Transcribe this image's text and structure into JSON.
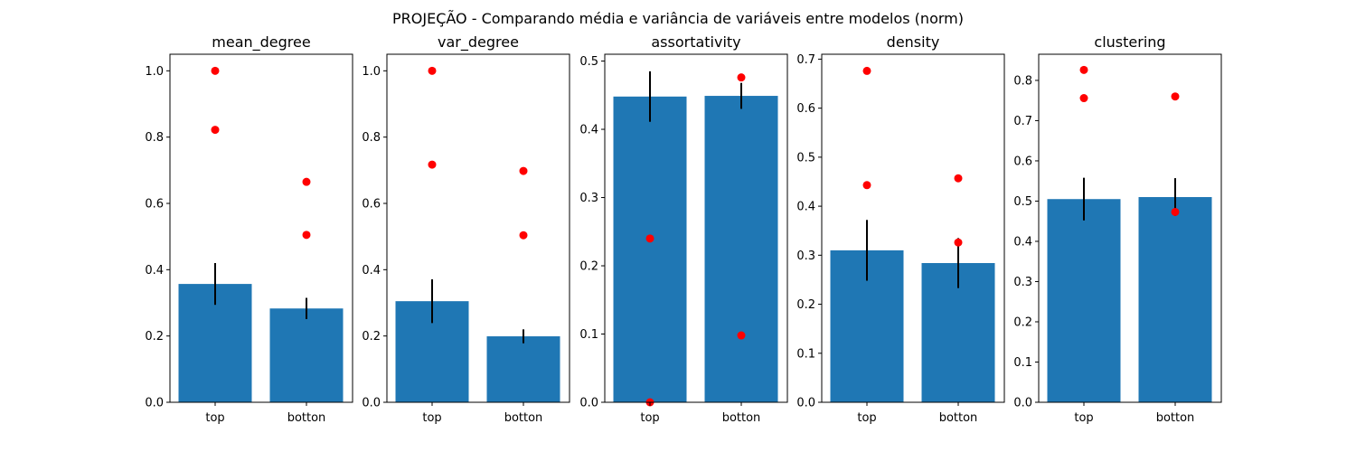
{
  "suptitle": "PROJEÇÃO - Comparando média e variância de variáveis entre modelos (norm)",
  "colors": {
    "bar": "#1f77b4",
    "point": "#ff0000",
    "errorbar": "#000000"
  },
  "chart_data": [
    {
      "type": "bar",
      "title": "mean_degree",
      "categories": [
        "top",
        "botton"
      ],
      "values": [
        0.357,
        0.283
      ],
      "error": [
        0.063,
        0.032
      ],
      "points": [
        [
          1.0,
          0.822
        ],
        [
          0.665,
          0.505
        ]
      ],
      "ylim": [
        0,
        1.05
      ],
      "yticks": [
        "0.0",
        "0.2",
        "0.4",
        "0.6",
        "0.8",
        "1.0"
      ]
    },
    {
      "type": "bar",
      "title": "var_degree",
      "categories": [
        "top",
        "botton"
      ],
      "values": [
        0.305,
        0.199
      ],
      "error": [
        0.066,
        0.021
      ],
      "points": [
        [
          1.0,
          0.717
        ],
        [
          0.698,
          0.504
        ]
      ],
      "ylim": [
        0,
        1.05
      ],
      "yticks": [
        "0.0",
        "0.2",
        "0.4",
        "0.6",
        "0.8",
        "1.0"
      ]
    },
    {
      "type": "bar",
      "title": "assortativity",
      "categories": [
        "top",
        "botton"
      ],
      "values": [
        0.448,
        0.449
      ],
      "error": [
        0.037,
        0.019
      ],
      "points": [
        [
          0.24,
          0.0
        ],
        [
          0.476,
          0.098
        ]
      ],
      "ylim": [
        0,
        0.51
      ],
      "yticks": [
        "0.0",
        "0.1",
        "0.2",
        "0.3",
        "0.4",
        "0.5"
      ]
    },
    {
      "type": "bar",
      "title": "density",
      "categories": [
        "top",
        "botton"
      ],
      "values": [
        0.31,
        0.284
      ],
      "error": [
        0.062,
        0.051
      ],
      "points": [
        [
          0.676,
          0.443
        ],
        [
          0.457,
          0.326
        ]
      ],
      "ylim": [
        0,
        0.71
      ],
      "yticks": [
        "0.0",
        "0.1",
        "0.2",
        "0.3",
        "0.4",
        "0.5",
        "0.6",
        "0.7"
      ]
    },
    {
      "type": "bar",
      "title": "clustering",
      "categories": [
        "top",
        "botton"
      ],
      "values": [
        0.505,
        0.51
      ],
      "error": [
        0.053,
        0.047
      ],
      "points": [
        [
          0.826,
          0.756
        ],
        [
          0.76,
          0.473
        ]
      ],
      "ylim": [
        0,
        0.865
      ],
      "yticks": [
        "0.0",
        "0.1",
        "0.2",
        "0.3",
        "0.4",
        "0.5",
        "0.6",
        "0.7",
        "0.8"
      ]
    }
  ]
}
